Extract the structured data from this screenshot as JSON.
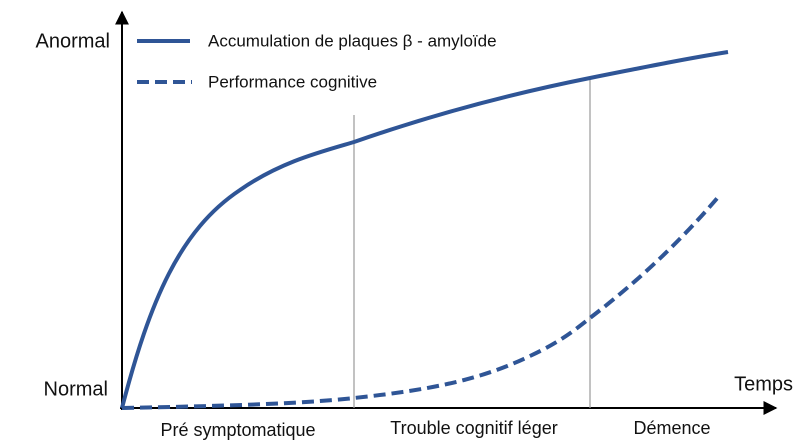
{
  "axes": {
    "y_top": "Anormal",
    "y_bottom": "Normal",
    "x": "Temps"
  },
  "legend": [
    "Accumulation de plaques β - amyloïde",
    "Performance cognitive"
  ],
  "phases": [
    "Pré symptomatique",
    "Trouble cognitif léger",
    "Démence"
  ]
}
